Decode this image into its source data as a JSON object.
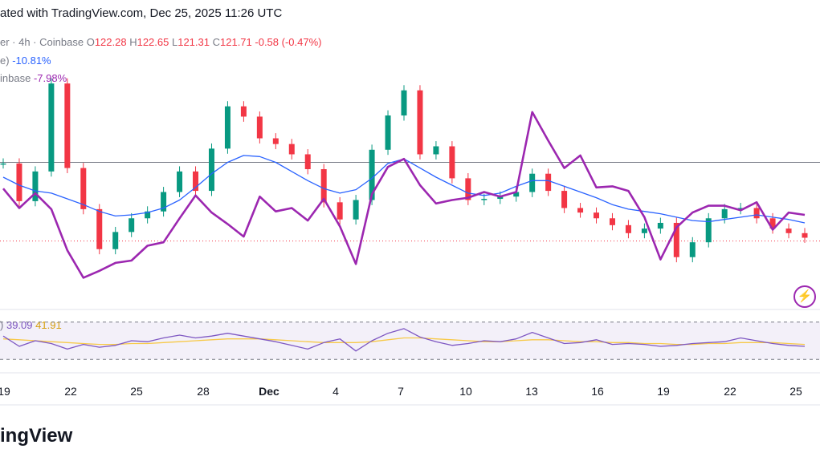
{
  "header": {
    "text": "ated with TradingView.com, Dec 25, 2025 11:26 UTC"
  },
  "legend": {
    "symbol_text": "er · 4h · Coinbase",
    "o_label": "O",
    "o_value": "122.28",
    "h_label": "H",
    "h_value": "122.65",
    "l_label": "L",
    "l_value": "121.31",
    "c_label": "C",
    "c_value": "121.71",
    "change": "-0.58 (-0.47%)",
    "line2_prefix": "e)",
    "line2_value": "-10.81%",
    "line3_prefix": "inbase",
    "line3_value": "-7.98%"
  },
  "rsi_legend": {
    "prefix": ")",
    "rsi_value": "39.09",
    "ma_value": "41.91"
  },
  "brand": "ingView",
  "colors": {
    "up": "#089981",
    "down": "#f23645",
    "ma": "#2962ff",
    "compare": "#9c27b0",
    "rsi": "#7e57c2",
    "rsi_ma": "#f7c948",
    "price_line": "#f23645"
  },
  "icons": {
    "alert": "lightning-bolt-icon"
  },
  "chart_data": {
    "type": "line",
    "x_ticks": [
      "19",
      "22",
      "25",
      "28",
      "Dec",
      "4",
      "7",
      "10",
      "13",
      "16",
      "19",
      "22",
      "25"
    ],
    "price_main_level": 128.6,
    "last_price": 121.71,
    "ylim": [
      116,
      140
    ],
    "series": [
      {
        "name": "Price",
        "values": [
          128.5,
          125.2,
          127.8,
          135.5,
          128.1,
          124.5,
          121.0,
          122.5,
          123.7,
          124.3,
          126.0,
          127.8,
          126.1,
          129.8,
          133.5,
          132.6,
          130.7,
          130.2,
          129.3,
          128.0,
          125.1,
          123.6,
          125.3,
          129.7,
          132.7,
          134.9,
          129.3,
          130.0,
          127.2,
          125.3,
          125.4,
          125.6,
          126.0,
          127.6,
          126.1,
          124.6,
          124.2,
          123.7,
          123.1,
          122.4,
          122.8,
          123.3,
          120.3,
          121.6,
          123.7,
          124.5,
          124.6,
          123.7,
          122.8,
          122.4,
          122.0
        ]
      },
      {
        "values": [
          127.3,
          126.6,
          126.1,
          125.9,
          125.4,
          124.9,
          124.3,
          123.9,
          124.0,
          124.2,
          124.6,
          125.3,
          126.4,
          127.6,
          128.6,
          129.2,
          129.1,
          128.6,
          127.8,
          127.0,
          126.3,
          125.9,
          126.2,
          127.2,
          128.5,
          128.9,
          128.1,
          127.3,
          126.6,
          125.9,
          125.7,
          125.9,
          126.5,
          127.0,
          127.0,
          126.5,
          126.0,
          125.5,
          124.9,
          124.5,
          124.3,
          124.1,
          123.8,
          123.5,
          123.4,
          123.6,
          123.8,
          124.0,
          123.8,
          123.6,
          123.3
        ]
      },
      {
        "values": [
          126.3,
          124.6,
          125.9,
          124.5,
          120.9,
          118.5,
          119.1,
          119.8,
          120.0,
          121.3,
          121.6,
          123.7,
          125.7,
          124.2,
          123.2,
          122.1,
          125.6,
          124.3,
          124.6,
          123.5,
          125.4,
          123.0,
          119.7,
          125.8,
          128.2,
          128.9,
          126.6,
          125.0,
          125.3,
          125.5,
          126.0,
          125.6,
          126.0,
          133.0,
          130.5,
          128.1,
          129.2,
          126.4,
          126.5,
          126.1,
          123.8,
          120.1,
          122.9,
          124.2,
          124.8,
          124.8,
          124.4,
          125.1,
          122.7,
          124.2,
          124.0
        ]
      },
      {
        "name": "RSI",
        "values": [
          55,
          44,
          50,
          47,
          41,
          46,
          43,
          45,
          50,
          49,
          53,
          56,
          53,
          55,
          58,
          55,
          52,
          49,
          45,
          41,
          48,
          52,
          39,
          50,
          58,
          63,
          54,
          49,
          45,
          47,
          50,
          49,
          52,
          59,
          53,
          47,
          48,
          51,
          46,
          47,
          46,
          44,
          45,
          47,
          48,
          49,
          53,
          50,
          47,
          45,
          44
        ]
      },
      {
        "values": [
          52,
          51,
          50,
          49,
          48,
          47,
          46,
          46,
          47,
          47,
          48,
          49,
          50,
          51,
          52,
          52,
          52,
          51,
          50,
          49,
          48,
          48,
          48,
          49,
          51,
          53,
          53,
          52,
          51,
          50,
          49,
          49,
          50,
          51,
          51,
          50,
          49,
          49,
          48,
          48,
          47,
          47,
          46,
          46,
          47,
          47,
          48,
          48,
          48,
          47,
          46
        ]
      }
    ],
    "rsi_bands": [
      70,
      30
    ],
    "rsi_ylim": [
      25,
      75
    ]
  }
}
